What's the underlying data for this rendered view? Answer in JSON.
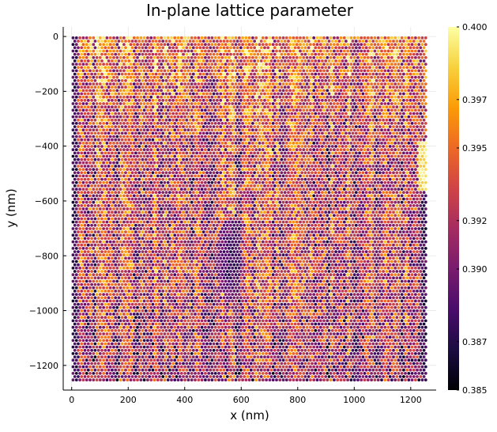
{
  "chart_data": {
    "type": "scatter",
    "title": "In-plane lattice parameter",
    "xlabel": "x (nm)",
    "ylabel": "y (nm)",
    "xlim": [
      -30,
      1290
    ],
    "ylim": [
      -1290,
      35
    ],
    "xticks": [
      0,
      200,
      400,
      600,
      800,
      1000,
      1200
    ],
    "xtick_labels": [
      "0",
      "200",
      "400",
      "600",
      "800",
      "1000",
      "1200"
    ],
    "yticks": [
      0,
      -200,
      -400,
      -600,
      -800,
      -1000,
      -1200
    ],
    "ytick_labels": [
      "0",
      "−200",
      "−400",
      "−600",
      "−800",
      "−1000",
      "−1200"
    ],
    "grid": true,
    "legend": "none",
    "colorbar": {
      "colormap": "inferno",
      "range": [
        0.385,
        0.4
      ],
      "ticks": [
        0.385,
        0.387,
        0.39,
        0.392,
        0.395,
        0.397,
        0.4
      ],
      "tick_labels": [
        "0.385",
        "0.387",
        "0.390",
        "0.392",
        "0.395",
        "0.397",
        "0.400"
      ]
    },
    "data_extent": {
      "x": [
        5,
        1255
      ],
      "y": [
        -1255,
        -5
      ]
    },
    "point_spacing_nm": [
      12,
      12
    ],
    "dominant_range": [
      0.389,
      0.397
    ],
    "features": [
      {
        "description_value": "low-lattice region",
        "x": 560,
        "y": -820,
        "value": 0.386
      },
      {
        "description_value": "left edge",
        "x": 10,
        "value": 0.386
      },
      {
        "description_value": "right edge upper",
        "x": 1240,
        "y": -450,
        "value": 0.399
      }
    ]
  },
  "colors": {
    "inferno": [
      "#000004",
      "#1b0c41",
      "#4a0c6b",
      "#781c6d",
      "#a52c60",
      "#cf4446",
      "#ed6925",
      "#fb9b06",
      "#f7d13d",
      "#fcffa4"
    ],
    "axis": "#000000",
    "grid": "#e6e6e6"
  }
}
